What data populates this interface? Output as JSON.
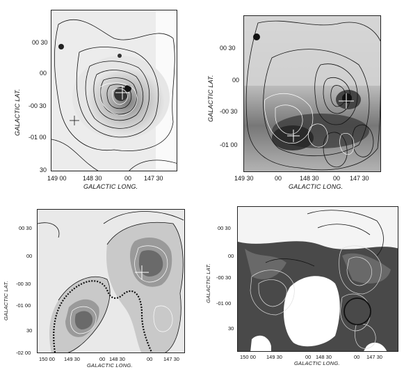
{
  "panels": [
    {
      "id": "top-left",
      "ylabel": "GALACTIC LAT.",
      "xlabel": "GALACTIC LONG.",
      "y_ticks": [
        "00 30",
        "00",
        "-00 30",
        "-01 00",
        "30"
      ],
      "x_ticks": [
        "149 00",
        "148 30",
        "00",
        "147 30"
      ]
    },
    {
      "id": "top-right",
      "ylabel": "GALACTIC LAT.",
      "xlabel": "GALACTIC LONG.",
      "y_ticks": [
        "00 30",
        "00",
        "-00 30",
        "-01 00"
      ],
      "x_ticks": [
        "149 30",
        "00",
        "148 30",
        "00",
        "147 30"
      ]
    },
    {
      "id": "bottom-left",
      "ylabel": "GALACTIC LAT.",
      "xlabel": "GALACTIC LONG.",
      "y_ticks": [
        "00 30",
        "00",
        "-00 30",
        "-01 00",
        "30",
        "-02 00"
      ],
      "x_ticks": [
        "150 00",
        "149 30",
        "00",
        "148 30",
        "00",
        "147 30"
      ]
    },
    {
      "id": "bottom-right",
      "ylabel": "GALACTIC LAT.",
      "xlabel": "GALACTIC LONG.",
      "y_ticks": [
        "00 30",
        "00",
        "-00 30",
        "-01 00",
        "30"
      ],
      "x_ticks": [
        "150 00",
        "149 30",
        "00",
        "148 30",
        "00",
        "147 30"
      ]
    }
  ]
}
